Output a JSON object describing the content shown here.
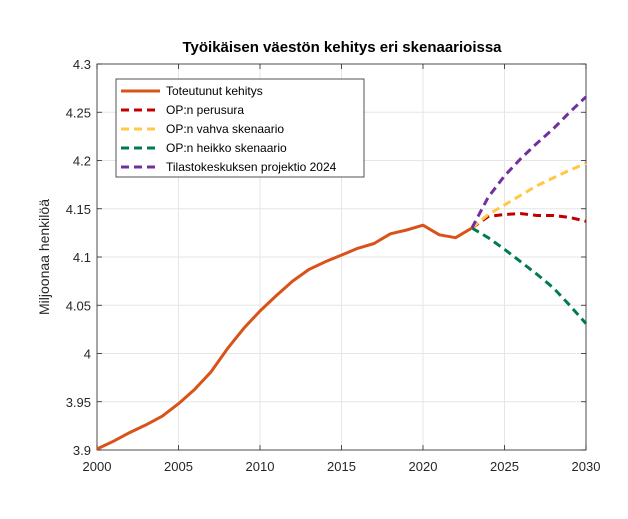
{
  "chart_data": {
    "type": "line",
    "title": "Työikäisen väestön kehitys eri skenaarioissa",
    "xlabel": "",
    "ylabel": "Miljoonaa henkilöä",
    "xlim": [
      2000,
      2030
    ],
    "ylim": [
      3.9,
      4.3
    ],
    "xticks": [
      "2000",
      "2005",
      "2010",
      "2015",
      "2020",
      "2025",
      "2030"
    ],
    "yticks": [
      "3.9",
      "3.95",
      "4",
      "4.05",
      "4.1",
      "4.15",
      "4.2",
      "4.25",
      "4.3"
    ],
    "grid": true,
    "legend_position": "top-left",
    "series": [
      {
        "name": "Toteutunut kehitys",
        "color": "#D95319",
        "dash": "solid",
        "x": [
          2000,
          2001,
          2002,
          2003,
          2004,
          2005,
          2006,
          2007,
          2008,
          2009,
          2010,
          2011,
          2012,
          2013,
          2014,
          2015,
          2016,
          2017,
          2018,
          2019,
          2020,
          2021,
          2022,
          2023
        ],
        "y": [
          3.901,
          3.909,
          3.918,
          3.926,
          3.935,
          3.948,
          3.963,
          3.981,
          4.005,
          4.026,
          4.044,
          4.06,
          4.075,
          4.087,
          4.095,
          4.102,
          4.109,
          4.114,
          4.124,
          4.128,
          4.133,
          4.123,
          4.12,
          4.13
        ]
      },
      {
        "name": "OP:n perusura",
        "color": "#C00000",
        "dash": "dashed",
        "x": [
          2023,
          2024,
          2025,
          2026,
          2027,
          2028,
          2029,
          2030
        ],
        "y": [
          4.13,
          4.142,
          4.144,
          4.145,
          4.143,
          4.143,
          4.141,
          4.137
        ]
      },
      {
        "name": "OP:n vahva skenaario",
        "color": "#FFC845",
        "dash": "dashed",
        "x": [
          2023,
          2024,
          2025,
          2026,
          2027,
          2028,
          2029,
          2030
        ],
        "y": [
          4.13,
          4.144,
          4.154,
          4.164,
          4.174,
          4.182,
          4.19,
          4.197
        ]
      },
      {
        "name": "OP:n heikko skenaario",
        "color": "#007A53",
        "dash": "dashed",
        "x": [
          2023,
          2024,
          2025,
          2026,
          2027,
          2028,
          2029,
          2030
        ],
        "y": [
          4.13,
          4.12,
          4.108,
          4.095,
          4.082,
          4.068,
          4.05,
          4.031
        ]
      },
      {
        "name": "Tilastokeskuksen projektio 2024",
        "color": "#7030A0",
        "dash": "dashed",
        "x": [
          2023,
          2024,
          2025,
          2026,
          2027,
          2028,
          2029,
          2030
        ],
        "y": [
          4.13,
          4.162,
          4.184,
          4.202,
          4.218,
          4.233,
          4.25,
          4.266
        ]
      }
    ]
  }
}
